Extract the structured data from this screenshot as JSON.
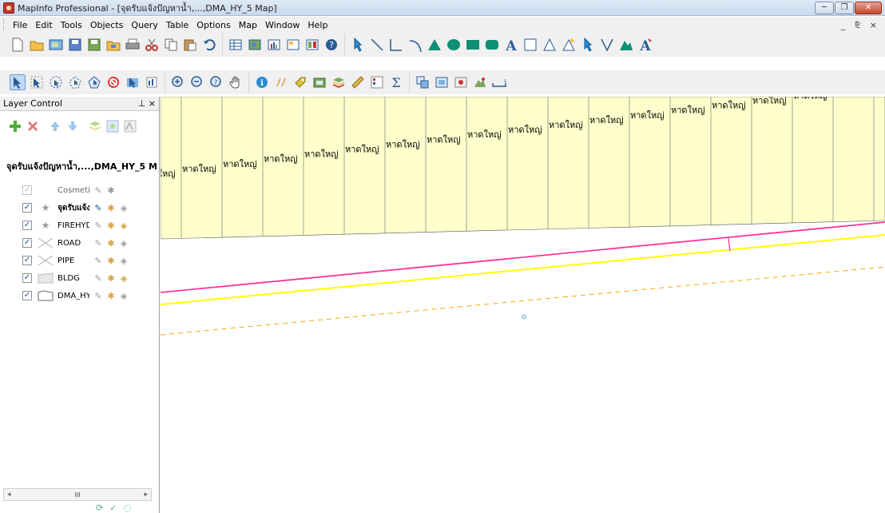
{
  "window": {
    "title": "MapInfo Professional - [จุดรับแจ้งปัญหาน้ำ,...,DMA_HY_5 Map]",
    "minimize": "─",
    "restore": "❐",
    "close": "✕"
  },
  "menu": {
    "items": [
      "File",
      "Edit",
      "Tools",
      "Objects",
      "Query",
      "Table",
      "Options",
      "Map",
      "Window",
      "Help"
    ],
    "mdi_controls": "_ ⅊ ×"
  },
  "toolbar_standard": {
    "icons": [
      "new-icon",
      "open-icon",
      "open-workspace-icon",
      "save-icon",
      "save-copy-icon",
      "open-dbms-icon",
      "print-icon",
      "cut-icon",
      "copy-icon",
      "paste-icon",
      "undo-icon",
      "browser-icon",
      "map-window-icon",
      "graph-icon",
      "layout-icon",
      "redistrict-icon",
      "help-icon"
    ]
  },
  "toolbar_drawing": {
    "icons": [
      "symbol-icon",
      "line-icon",
      "polyline-icon",
      "arc-icon",
      "polygon-icon",
      "ellipse-icon",
      "rectangle-icon",
      "rounded-rect-icon",
      "text-icon",
      "frame-icon",
      "reshape-icon",
      "add-node-icon",
      "symbol-style-icon",
      "line-style-icon",
      "region-style-icon",
      "text-style-icon"
    ]
  },
  "toolbar_main": {
    "icons": [
      "select-icon",
      "marquee-select-icon",
      "radius-select-icon",
      "polygon-select-icon",
      "boundary-select-icon",
      "unselect-all-icon",
      "invert-selection-icon",
      "graph-select-icon",
      "zoom-in-icon",
      "zoom-out-icon",
      "change-view-icon",
      "grabber-icon",
      "info-icon",
      "hotlink-icon",
      "label-icon",
      "drag-map-icon",
      "layer-control-icon",
      "ruler-icon",
      "legend-icon",
      "statistics-icon",
      "clip-region-icon",
      "set-target-icon",
      "create-thematic-icon",
      "3d-icon",
      "scale-bar-icon"
    ]
  },
  "layer_control": {
    "title": "Layer Control",
    "pin": "⊥ ×",
    "map_name": "จุดรับแจ้งปัญหาน้ำ,...,DMA_HY_5 M",
    "layers": [
      {
        "name": "Cosmetic",
        "checked": true,
        "dim": true
      },
      {
        "name": "จุดรับแจ้ง",
        "checked": true,
        "bold": true
      },
      {
        "name": "FIREHYD",
        "checked": true,
        "dim": true
      },
      {
        "name": "ROAD",
        "checked": true
      },
      {
        "name": "PIPE",
        "checked": true
      },
      {
        "name": "BLDG",
        "checked": true
      },
      {
        "name": "DMA_HY",
        "checked": true
      }
    ],
    "scroll_label": "III"
  },
  "map": {
    "zone_label": "หาดใหญ่",
    "colors": {
      "zone_fill": "#ffffcc",
      "road": "#ff3399",
      "pipe": "#ffff00",
      "dashed": "#ffa500"
    }
  }
}
